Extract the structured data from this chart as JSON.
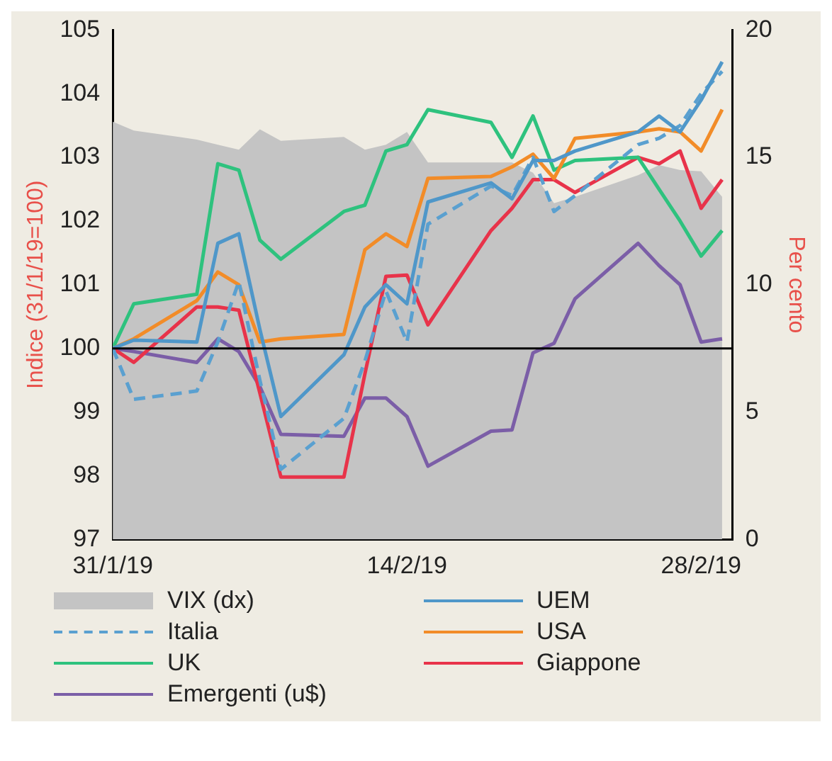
{
  "chart_data": {
    "type": "line",
    "ylabel": "Indice (31/1/19=100)",
    "y2label": "Per cento",
    "x": [
      "2019-01-31",
      "2019-02-01",
      "2019-02-04",
      "2019-02-05",
      "2019-02-06",
      "2019-02-07",
      "2019-02-08",
      "2019-02-11",
      "2019-02-12",
      "2019-02-13",
      "2019-02-14",
      "2019-02-15",
      "2019-02-18",
      "2019-02-19",
      "2019-02-20",
      "2019-02-21",
      "2019-02-22",
      "2019-02-25",
      "2019-02-26",
      "2019-02-27",
      "2019-02-28",
      "2019-03-01"
    ],
    "xlim": [
      "2019-01-31",
      "2019-03-01T12:00"
    ],
    "xticks": [
      {
        "value": "2019-01-31",
        "label": "31/1/19"
      },
      {
        "value": "2019-02-14",
        "label": "14/2/19"
      },
      {
        "value": "2019-02-28",
        "label": "28/2/19"
      }
    ],
    "ylim": [
      97,
      105
    ],
    "yticks": [
      97,
      98,
      99,
      100,
      101,
      102,
      103,
      104,
      105
    ],
    "y2lim": [
      0,
      20
    ],
    "y2ticks": [
      0,
      5,
      10,
      15,
      20
    ],
    "grid": false,
    "legend": "bottom",
    "ref_lines": [
      {
        "axis": "y",
        "value": 100,
        "color": "#000000"
      }
    ],
    "series": [
      {
        "name": "VIX (dx)",
        "type": "area",
        "axis": "y2",
        "color": "#c4c4c4",
        "values": [
          16.4,
          16.05,
          15.7,
          15.5,
          15.3,
          16.1,
          15.65,
          15.8,
          15.3,
          15.5,
          16.0,
          14.8,
          14.8,
          14.8,
          14.4,
          13.2,
          13.45,
          14.3,
          14.7,
          14.5,
          14.45,
          13.45
        ]
      },
      {
        "name": "UEM",
        "color": "#4f97c9",
        "values": [
          100,
          100.13,
          100.1,
          101.65,
          101.8,
          100.3,
          98.93,
          99.9,
          100.65,
          101.0,
          100.7,
          102.3,
          102.6,
          102.35,
          102.95,
          102.95,
          103.1,
          103.4,
          103.65,
          103.4,
          103.9,
          104.5
        ]
      },
      {
        "name": "Italia",
        "color": "#5aa0d0",
        "line_style": "dashed",
        "values": [
          100,
          99.2,
          99.33,
          100.1,
          101.05,
          99.5,
          98.1,
          98.9,
          99.8,
          100.9,
          100.1,
          101.95,
          102.55,
          102.4,
          103.0,
          102.15,
          102.4,
          103.2,
          103.3,
          103.5,
          104.0,
          104.35
        ]
      },
      {
        "name": "USA",
        "color": "#f28c28",
        "values": [
          100,
          100.15,
          100.75,
          101.2,
          101.0,
          100.1,
          100.15,
          100.22,
          101.55,
          101.8,
          101.6,
          102.67,
          102.7,
          102.85,
          103.05,
          102.67,
          103.3,
          103.4,
          103.45,
          103.4,
          103.1,
          103.75
        ]
      },
      {
        "name": "UK",
        "color": "#2ec27e",
        "values": [
          100,
          100.7,
          100.85,
          102.9,
          102.8,
          101.7,
          101.4,
          102.15,
          102.25,
          103.1,
          103.2,
          103.75,
          103.55,
          103.0,
          103.65,
          102.8,
          102.95,
          103.0,
          102.5,
          102.0,
          101.45,
          101.85
        ]
      },
      {
        "name": "Giappone",
        "color": "#e8334a",
        "values": [
          100,
          99.78,
          100.65,
          100.65,
          100.6,
          99.3,
          97.98,
          97.98,
          99.6,
          101.13,
          101.15,
          100.37,
          101.85,
          102.2,
          102.65,
          102.65,
          102.45,
          103.0,
          102.9,
          103.1,
          102.2,
          102.65
        ]
      },
      {
        "name": "Emergenti (u$)",
        "color": "#7b5ea7",
        "values": [
          100,
          99.95,
          99.78,
          100.15,
          99.95,
          99.4,
          98.65,
          98.62,
          99.22,
          99.22,
          98.93,
          98.15,
          98.7,
          98.72,
          99.93,
          100.08,
          100.78,
          101.65,
          101.3,
          101.0,
          100.1,
          100.15
        ]
      }
    ]
  }
}
